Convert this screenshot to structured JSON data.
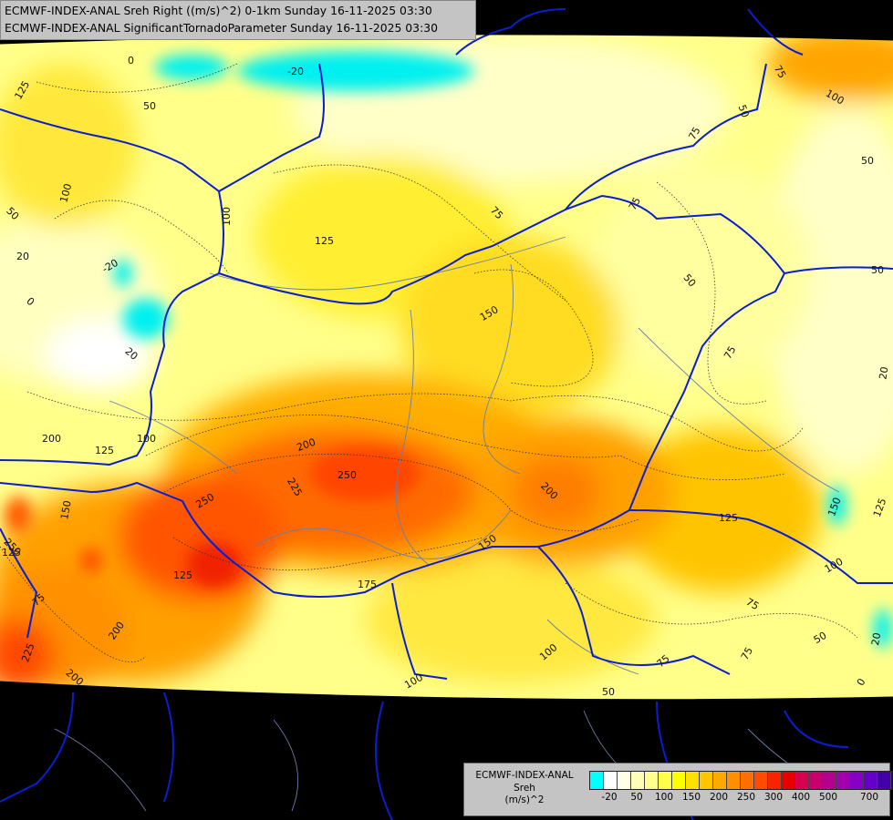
{
  "header": {
    "line1": "ECMWF-INDEX-ANAL Sreh Right ((m/s)^2) 0-1km Sunday 16-11-2025 03:30",
    "line2": "ECMWF-INDEX-ANAL SignificantTornadoParameter Sunday 16-11-2025 03:30"
  },
  "legend": {
    "title1": "ECMWF-INDEX-ANAL",
    "title2": "Sreh",
    "title3": "(m/s)^2",
    "colors": [
      "#00ffff",
      "#ffffff",
      "#ffffe8",
      "#ffffb8",
      "#ffff90",
      "#ffff4c",
      "#ffff00",
      "#ffe000",
      "#ffc600",
      "#ffa800",
      "#ff8e00",
      "#ff6e00",
      "#ff4c00",
      "#f82400",
      "#e80000",
      "#d8004e",
      "#c8006e",
      "#b4008e",
      "#a000b0",
      "#8600c4",
      "#6400c8",
      "#4400a8",
      "#2a0090"
    ],
    "ticks": [
      "-20",
      "50",
      "100",
      "150",
      "200",
      "250",
      "300",
      "400",
      "500",
      "700"
    ]
  },
  "contours": {
    "labels": [
      "0",
      "-20",
      "125",
      "50",
      "75",
      "100",
      "50",
      "100",
      "75",
      "50",
      "100",
      "125",
      "75",
      "150",
      "50",
      "50",
      "75",
      "50",
      "-20",
      "20",
      "0",
      "20",
      "75",
      "125",
      "100",
      "200",
      "250",
      "225",
      "250",
      "200",
      "150",
      "150",
      "250",
      "125",
      "200",
      "125",
      "175",
      "150",
      "75",
      "100",
      "125",
      "75",
      "200",
      "225",
      "200",
      "100",
      "50",
      "100",
      "75",
      "75",
      "50",
      "0",
      "20",
      "20",
      "125"
    ]
  }
}
